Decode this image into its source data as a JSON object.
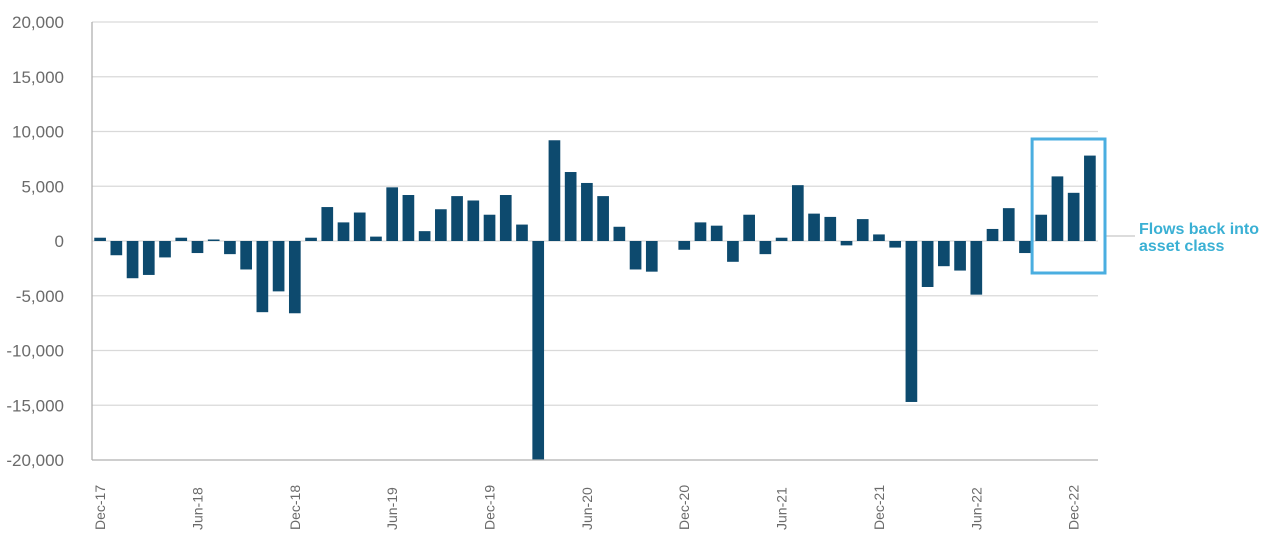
{
  "chart_data": {
    "type": "bar",
    "title": "",
    "xlabel": "",
    "ylabel": "",
    "ylim": [
      -20000,
      20000
    ],
    "yticks": [
      20000,
      15000,
      10000,
      5000,
      0,
      -5000,
      -10000,
      -15000,
      -20000
    ],
    "ytick_labels": [
      "20,000",
      "15,000",
      "10,000",
      "5,000",
      "0",
      "-5,000",
      "-10,000",
      "-15,000",
      "-20,000"
    ],
    "grid": true,
    "categories": [
      "Dec-17",
      "Jan-18",
      "Feb-18",
      "Mar-18",
      "Apr-18",
      "May-18",
      "Jun-18",
      "Jul-18",
      "Aug-18",
      "Sep-18",
      "Oct-18",
      "Nov-18",
      "Dec-18",
      "Jan-19",
      "Feb-19",
      "Mar-19",
      "Apr-19",
      "May-19",
      "Jun-19",
      "Jul-19",
      "Aug-19",
      "Sep-19",
      "Oct-19",
      "Nov-19",
      "Dec-19",
      "Jan-20",
      "Feb-20",
      "Mar-20",
      "Apr-20",
      "May-20",
      "Jun-20",
      "Jul-20",
      "Aug-20",
      "Sep-20",
      "Oct-20",
      "Nov-20",
      "Dec-20",
      "Jan-21",
      "Feb-21",
      "Mar-21",
      "Apr-21",
      "May-21",
      "Jun-21",
      "Jul-21",
      "Aug-21",
      "Sep-21",
      "Oct-21",
      "Nov-21",
      "Dec-21",
      "Jan-22",
      "Feb-22",
      "Mar-22",
      "Apr-22",
      "May-22",
      "Jun-22",
      "Jul-22",
      "Aug-22",
      "Sep-22",
      "Oct-22",
      "Nov-22",
      "Dec-22",
      "Jan-23"
    ],
    "xtick_labels": [
      "Dec-17",
      "Jun-18",
      "Dec-18",
      "Jun-19",
      "Dec-19",
      "Jun-20",
      "Dec-20",
      "Jun-21",
      "Dec-21",
      "Jun-22",
      "Dec-22"
    ],
    "series": [
      {
        "name": "Flows",
        "color": "#0d4a6e",
        "values": [
          300,
          -1300,
          -3400,
          -3100,
          -1500,
          300,
          -1100,
          100,
          -1200,
          -2600,
          -6500,
          -4600,
          -6600,
          300,
          3100,
          1700,
          2600,
          400,
          4900,
          4200,
          900,
          2900,
          4100,
          3700,
          2400,
          4200,
          1500,
          -20000,
          9200,
          6300,
          5300,
          4100,
          1300,
          -2600,
          -2800,
          0,
          -800,
          1700,
          1400,
          -1900,
          2400,
          -1200,
          300,
          5100,
          2500,
          2200,
          -400,
          2000,
          600,
          -600,
          -14700,
          -4200,
          -2300,
          -2700,
          -4900,
          1100,
          3000,
          -1100,
          2400,
          5900,
          4400,
          7800
        ]
      }
    ],
    "annotation": {
      "text_line1": "Flows back into",
      "text_line2": "asset class",
      "highlight_from": "Oct-22",
      "highlight_to": "Jan-23",
      "color": "#3ab0d4",
      "box_color": "#4aaee0"
    },
    "colors": {
      "bar": "#0d4a6e",
      "grid": "#d9d9d9",
      "axis": "#b0b0b0",
      "tick_text": "#6b6b6b"
    }
  }
}
